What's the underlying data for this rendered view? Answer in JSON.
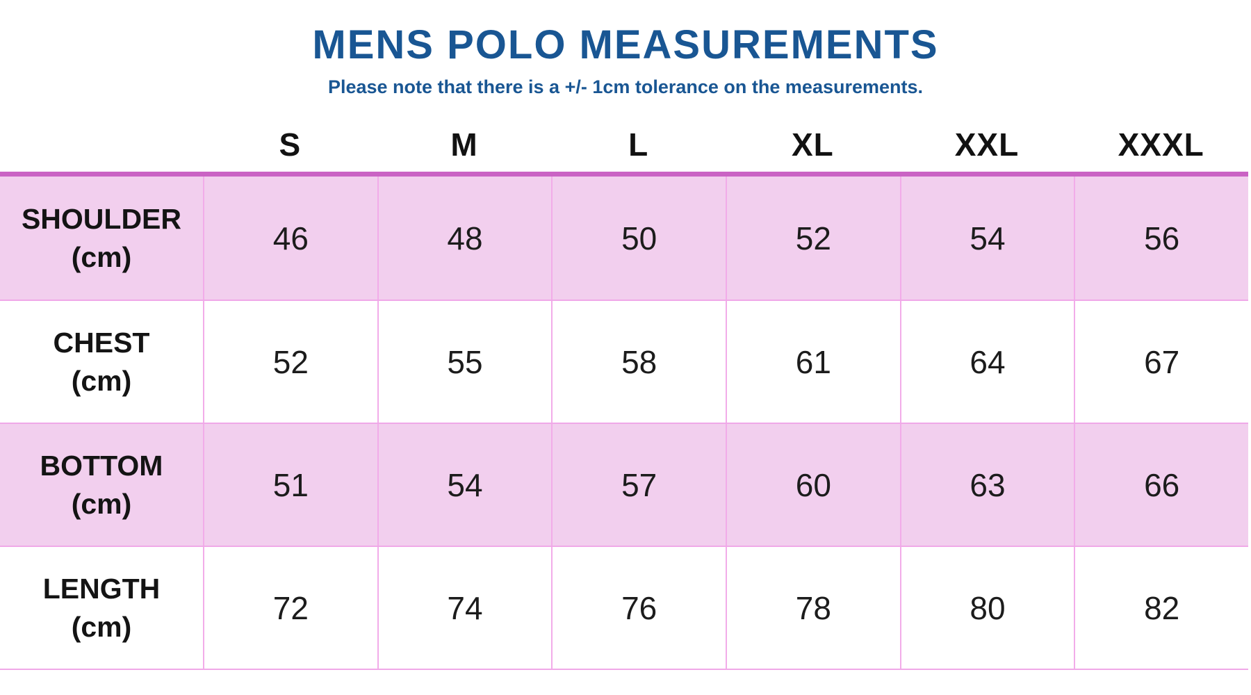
{
  "page": {
    "title": "MENS POLO MEASUREMENTS",
    "subtitle": "Please note that there is a +/- 1cm tolerance on the measurements."
  },
  "colors": {
    "heading_blue": "#195693",
    "row_pink": "#f2cfee",
    "table_top_border_magenta": "#ca63c4",
    "grid_line_pink": "#f0a8e8",
    "text_black": "#1c1c1c"
  },
  "chart_data": {
    "type": "table",
    "title": "MENS POLO MEASUREMENTS",
    "subtitle": "Please note that there is a +/- 1cm tolerance on the measurements.",
    "columns": [
      "S",
      "M",
      "L",
      "XL",
      "XXL",
      "XXXL"
    ],
    "rows": [
      {
        "label": "SHOULDER",
        "unit": "(cm)",
        "values": [
          46,
          48,
          50,
          52,
          54,
          56
        ]
      },
      {
        "label": "CHEST",
        "unit": "(cm)",
        "values": [
          52,
          55,
          58,
          61,
          64,
          67
        ]
      },
      {
        "label": "BOTTOM",
        "unit": "(cm)",
        "values": [
          51,
          54,
          57,
          60,
          63,
          66
        ]
      },
      {
        "label": "LENGTH",
        "unit": "(cm)",
        "values": [
          72,
          74,
          76,
          78,
          80,
          82
        ]
      }
    ]
  }
}
